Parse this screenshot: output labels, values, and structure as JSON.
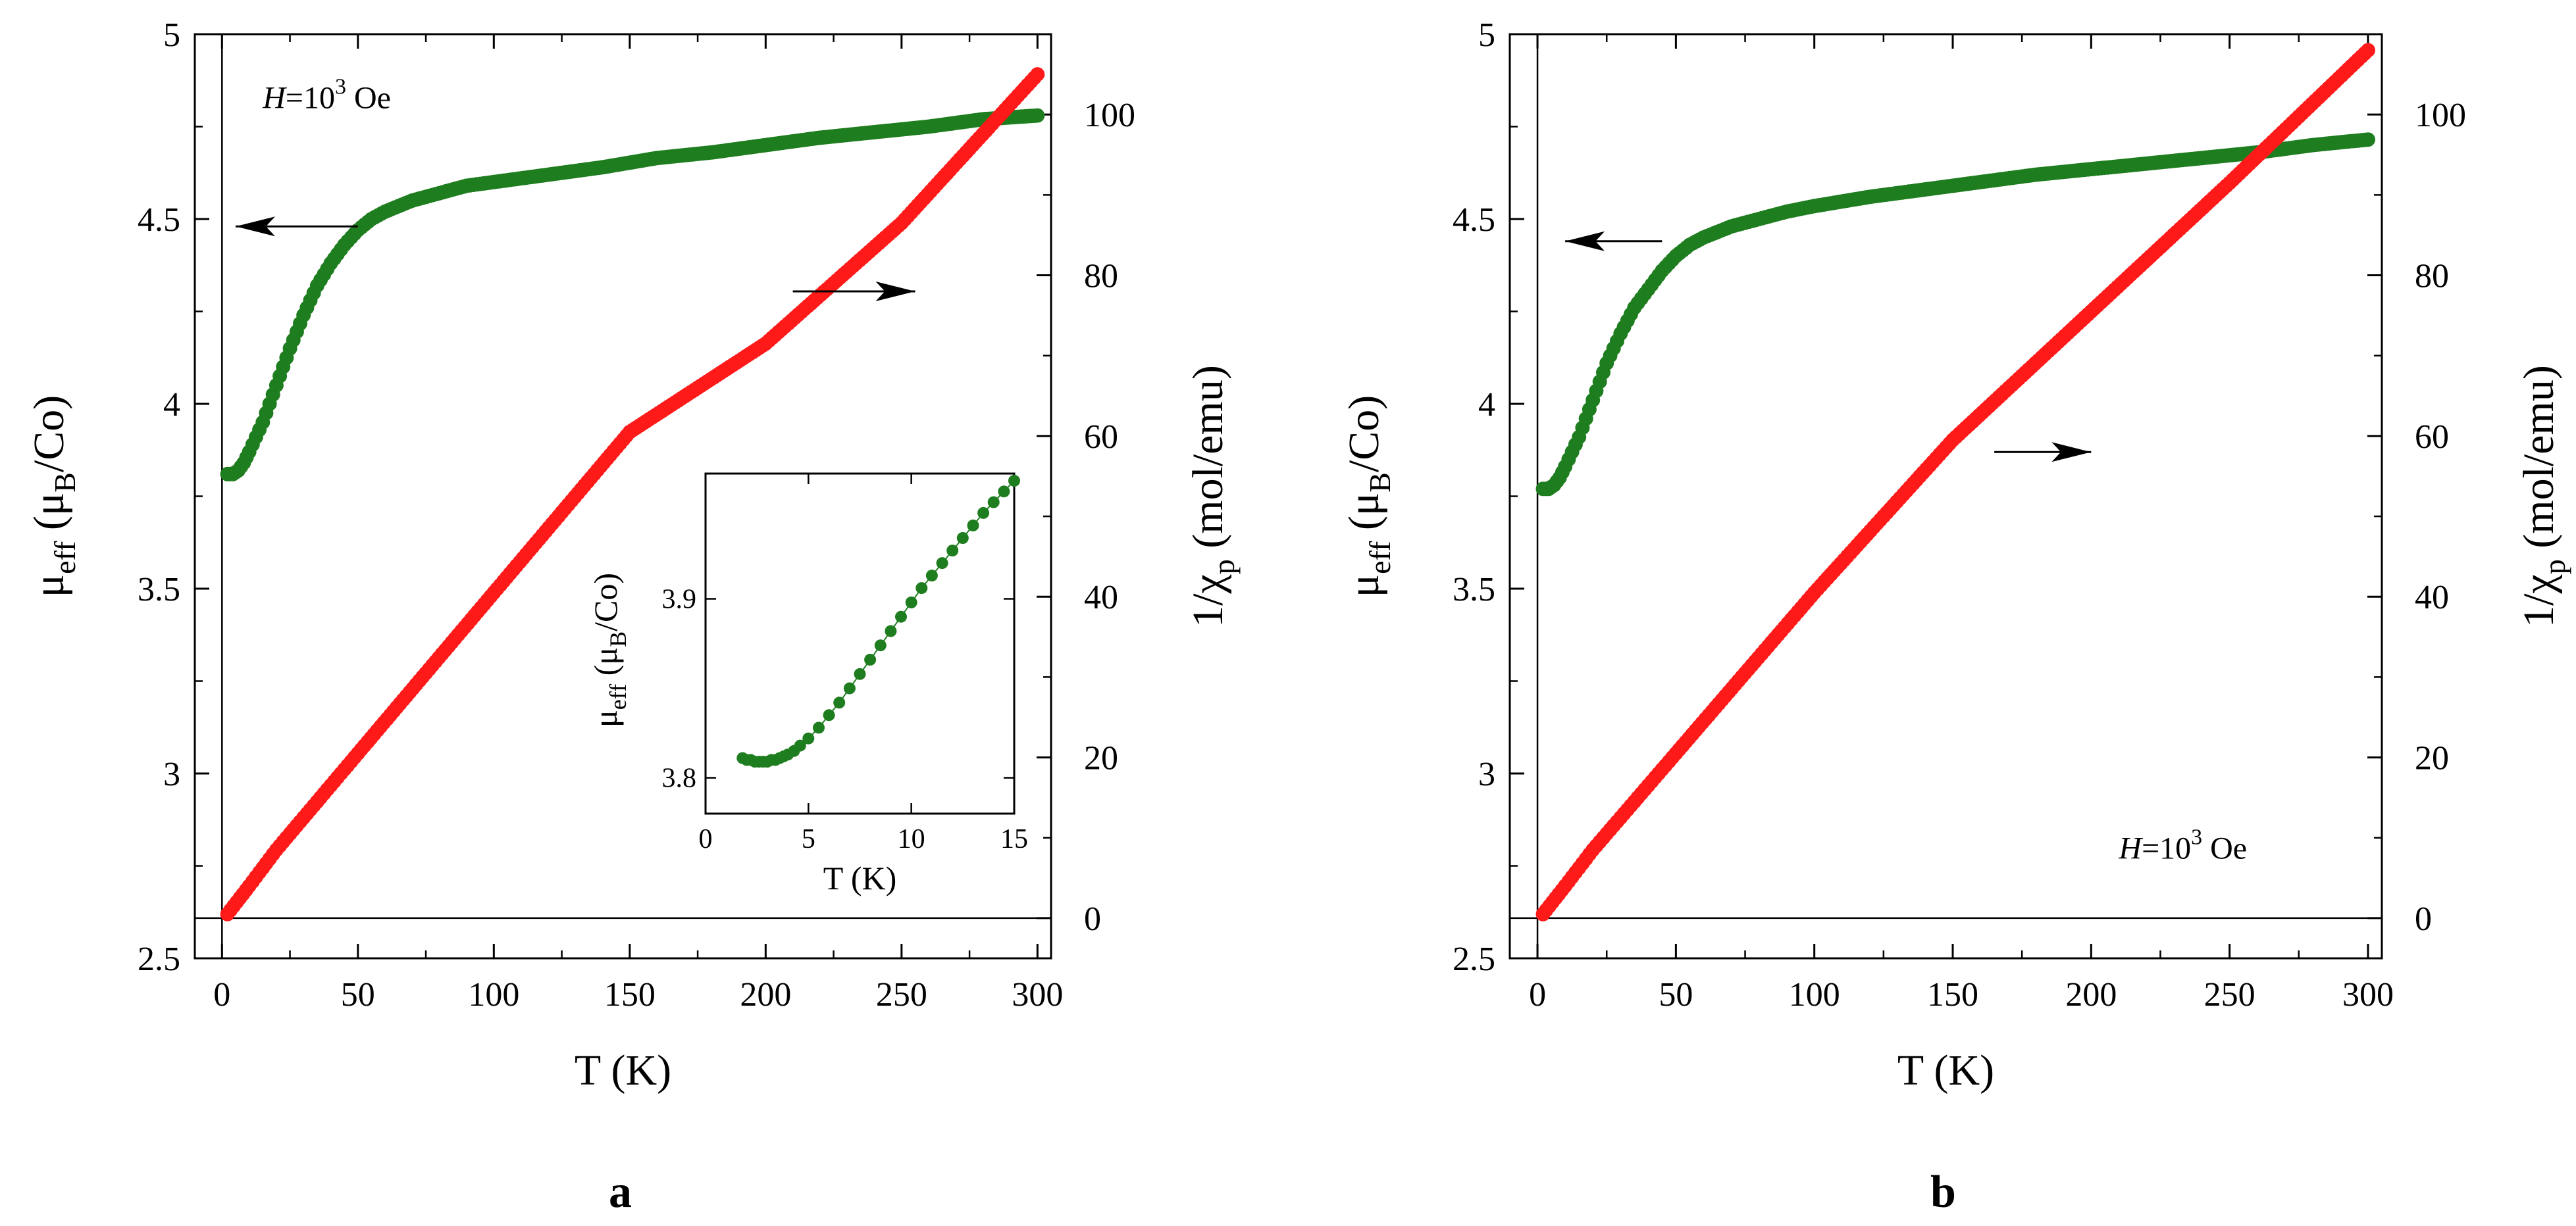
{
  "chart_data": [
    {
      "type": "scatter",
      "panel_label": "a",
      "xlabel": "T (K)",
      "ylabel_left": {
        "main": "μ",
        "sub1": "eff",
        "mid": "  (μ",
        "sub2": "B",
        "tail": "/Co)"
      },
      "ylabel_right": {
        "main": "1/χ",
        "sub": "p",
        "tail": " (mol/emu)"
      },
      "annotation": {
        "italic": "H",
        "pre": "=10",
        "sup": "3",
        "post": " Oe"
      },
      "xlim": [
        -10,
        305
      ],
      "ylim_left": [
        2.5,
        5.0
      ],
      "ylim_right": [
        -5,
        110
      ],
      "xticks": [
        0,
        50,
        100,
        150,
        200,
        250,
        300
      ],
      "yticks_left": [
        2.5,
        3.0,
        3.5,
        4.0,
        4.5,
        5.0
      ],
      "yticks_right": [
        0,
        20,
        40,
        60,
        80,
        100
      ],
      "series": [
        {
          "name": "μeff",
          "axis": "left",
          "color": "#1e7d1e",
          "x": [
            2,
            4,
            6,
            8,
            10,
            15,
            20,
            25,
            30,
            35,
            40,
            45,
            50,
            55,
            60,
            70,
            80,
            90,
            100,
            120,
            140,
            160,
            180,
            200,
            220,
            240,
            260,
            280,
            300
          ],
          "y": [
            3.81,
            3.81,
            3.82,
            3.84,
            3.87,
            3.95,
            4.05,
            4.15,
            4.24,
            4.32,
            4.38,
            4.43,
            4.47,
            4.5,
            4.52,
            4.55,
            4.57,
            4.59,
            4.6,
            4.62,
            4.64,
            4.665,
            4.68,
            4.7,
            4.72,
            4.735,
            4.75,
            4.77,
            4.78
          ]
        },
        {
          "name": "1/χp",
          "axis": "right",
          "color": "#ff1a1a",
          "x": [
            2,
            10,
            20,
            30,
            40,
            50,
            75,
            100,
            150,
            200,
            250,
            300
          ],
          "y": [
            0.5,
            4,
            8.5,
            12.5,
            16.5,
            20.5,
            30.5,
            40.5,
            60.5,
            71.5,
            86.5,
            105
          ]
        }
      ],
      "arrows": [
        {
          "direction": "left",
          "points_to": "left axis",
          "x_range": [
            5,
            50
          ],
          "y_value": 4.48,
          "axis": "left"
        },
        {
          "direction": "right",
          "points_to": "right axis",
          "x_range": [
            210,
            255
          ],
          "y_value": 78,
          "axis": "right"
        }
      ],
      "inset": {
        "xlabel": "T (K)",
        "ylabel": {
          "main": "μ",
          "sub1": "eff",
          "mid": "  (μ",
          "sub2": "B",
          "tail": "/Co)"
        },
        "xlim": [
          0,
          15
        ],
        "ylim": [
          3.78,
          3.97
        ],
        "xticks": [
          0,
          5,
          10,
          15
        ],
        "yticks": [
          3.8,
          3.9
        ],
        "color": "#1e7d1e",
        "x": [
          1.8,
          2.0,
          2.2,
          2.4,
          2.6,
          2.8,
          3.0,
          3.2,
          3.4,
          3.6,
          3.8,
          4.0,
          4.3,
          4.6,
          5.0,
          5.5,
          6.0,
          6.5,
          7.0,
          7.5,
          8.0,
          8.5,
          9.0,
          9.5,
          10.0,
          10.5,
          11.0,
          11.5,
          12.0,
          12.5,
          13.0,
          13.5,
          14.0,
          14.5,
          15.0
        ],
        "y": [
          3.811,
          3.81,
          3.81,
          3.809,
          3.809,
          3.809,
          3.809,
          3.81,
          3.81,
          3.811,
          3.812,
          3.813,
          3.815,
          3.818,
          3.822,
          3.828,
          3.835,
          3.842,
          3.85,
          3.858,
          3.866,
          3.874,
          3.882,
          3.89,
          3.898,
          3.906,
          3.913,
          3.92,
          3.927,
          3.934,
          3.941,
          3.948,
          3.954,
          3.96,
          3.966
        ]
      }
    },
    {
      "type": "scatter",
      "panel_label": "b",
      "xlabel": "T (K)",
      "ylabel_left": {
        "main": "μ",
        "sub1": "eff",
        "mid": "  (μ",
        "sub2": "B",
        "tail": "/Co)"
      },
      "ylabel_right": {
        "main": "1/χ",
        "sub": "p",
        "tail": " (mol/emu)"
      },
      "annotation": {
        "italic": "H",
        "pre": "=10",
        "sup": "3",
        "post": " Oe"
      },
      "xlim": [
        -10,
        305
      ],
      "ylim_left": [
        2.5,
        5.0
      ],
      "ylim_right": [
        -5,
        110
      ],
      "xticks": [
        0,
        50,
        100,
        150,
        200,
        250,
        300
      ],
      "yticks_left": [
        2.5,
        3.0,
        3.5,
        4.0,
        4.5,
        5.0
      ],
      "yticks_right": [
        0,
        20,
        40,
        60,
        80,
        100
      ],
      "series": [
        {
          "name": "μeff",
          "axis": "left",
          "color": "#1e7d1e",
          "x": [
            2,
            4,
            6,
            8,
            10,
            15,
            20,
            25,
            30,
            35,
            40,
            45,
            50,
            55,
            60,
            70,
            80,
            90,
            100,
            120,
            140,
            160,
            180,
            200,
            220,
            240,
            260,
            280,
            300
          ],
          "y": [
            3.77,
            3.77,
            3.78,
            3.8,
            3.83,
            3.91,
            4.01,
            4.11,
            4.19,
            4.26,
            4.31,
            4.36,
            4.4,
            4.43,
            4.45,
            4.48,
            4.5,
            4.52,
            4.535,
            4.56,
            4.58,
            4.6,
            4.62,
            4.635,
            4.65,
            4.665,
            4.68,
            4.7,
            4.715
          ]
        },
        {
          "name": "1/χp",
          "axis": "right",
          "color": "#ff1a1a",
          "x": [
            2,
            10,
            20,
            30,
            40,
            50,
            75,
            100,
            150,
            200,
            250,
            300
          ],
          "y": [
            0.5,
            4,
            8.5,
            12.5,
            16.5,
            20.5,
            30.5,
            40.5,
            59.5,
            75.5,
            91.5,
            108
          ]
        }
      ],
      "arrows": [
        {
          "direction": "left",
          "points_to": "left axis",
          "x_range": [
            10,
            45
          ],
          "y_value": 4.44,
          "axis": "left"
        },
        {
          "direction": "right",
          "points_to": "right axis",
          "x_range": [
            165,
            200
          ],
          "y_value": 58,
          "axis": "right"
        }
      ]
    }
  ]
}
